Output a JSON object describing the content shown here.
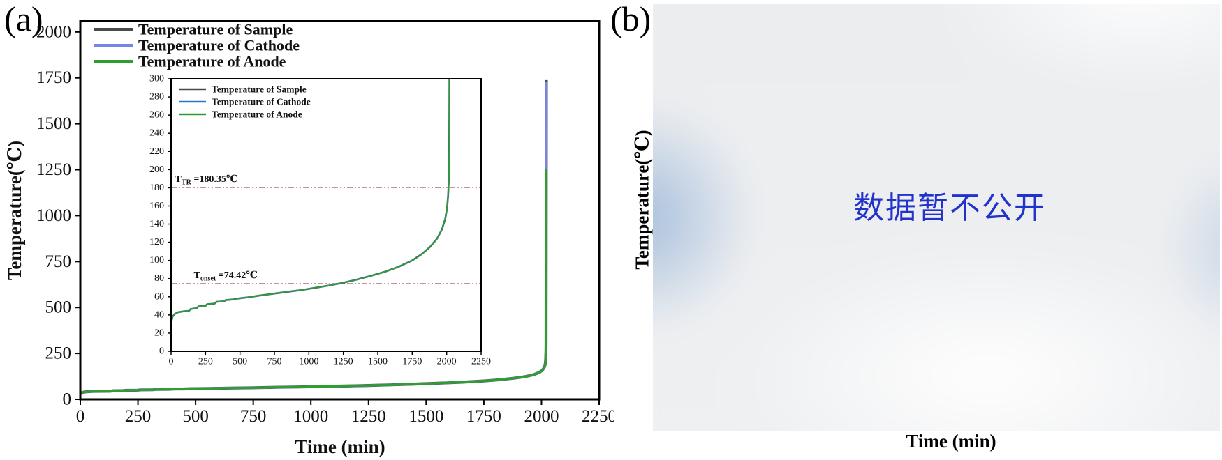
{
  "panels": {
    "a": {
      "label": "(a)"
    },
    "b": {
      "label": "(b)",
      "ylabel": "Temperature(℃)",
      "xlabel": "Time (min)",
      "watermark": "数据暂不公开",
      "watermark_color": "#2233cc"
    }
  },
  "chart_data": [
    {
      "id": "main-plot",
      "type": "line",
      "title": "",
      "xlabel": "Time (min)",
      "ylabel": "Temperature(℃)",
      "xlim": [
        0,
        2250
      ],
      "ylim": [
        0,
        2060
      ],
      "xticks": [
        0,
        250,
        500,
        750,
        1000,
        1250,
        1500,
        1750,
        2000,
        2250
      ],
      "yticks": [
        0,
        250,
        500,
        750,
        1000,
        1250,
        1500,
        1750,
        2000
      ],
      "grid": false,
      "legend_position": "top-left",
      "thermal_runaway_time_min": 2020,
      "base_points": [
        [
          0,
          30
        ],
        [
          4,
          34
        ],
        [
          10,
          38
        ],
        [
          25,
          41
        ],
        [
          50,
          43
        ],
        [
          90,
          44
        ],
        [
          130,
          44.5
        ],
        [
          142,
          46.5
        ],
        [
          185,
          47.5
        ],
        [
          200,
          49.5
        ],
        [
          250,
          50
        ],
        [
          262,
          51.8
        ],
        [
          315,
          52.5
        ],
        [
          330,
          54.5
        ],
        [
          385,
          55
        ],
        [
          398,
          56.5
        ],
        [
          450,
          57
        ],
        [
          480,
          58
        ],
        [
          560,
          59.5
        ],
        [
          650,
          61.5
        ],
        [
          750,
          63.5
        ],
        [
          850,
          65.5
        ],
        [
          950,
          67.5
        ],
        [
          1050,
          70
        ],
        [
          1150,
          72.5
        ],
        [
          1250,
          75.5
        ],
        [
          1350,
          79
        ],
        [
          1450,
          83
        ],
        [
          1550,
          87.5
        ],
        [
          1650,
          93
        ],
        [
          1750,
          100
        ],
        [
          1820,
          107
        ],
        [
          1880,
          115
        ],
        [
          1930,
          124
        ],
        [
          1965,
          134
        ],
        [
          1990,
          146
        ],
        [
          2003,
          158
        ],
        [
          2011,
          172
        ],
        [
          2015,
          186
        ],
        [
          2017,
          200
        ],
        [
          2018.5,
          225
        ],
        [
          2019.5,
          262
        ],
        [
          2020,
          300
        ]
      ],
      "series": [
        {
          "name": "Temperature of Sample",
          "color": "#4a4a4a",
          "peak_points": [
            [
              2020.6,
              1000
            ],
            [
              2021.2,
              1738
            ]
          ]
        },
        {
          "name": "Temperature of Cathode",
          "color": "#7484e8",
          "peak_points": [
            [
              2020.6,
              1000
            ],
            [
              2021.2,
              1728
            ]
          ]
        },
        {
          "name": "Temperature of Anode",
          "color": "#2e9e2e",
          "peak_points": [
            [
              2020.4,
              800
            ],
            [
              2020.9,
              1252
            ]
          ]
        }
      ]
    },
    {
      "id": "inset-plot",
      "type": "line",
      "title": "",
      "xlabel": "",
      "ylabel": "",
      "xlim": [
        0,
        2250
      ],
      "ylim": [
        0,
        300
      ],
      "xticks": [
        0,
        250,
        500,
        750,
        1000,
        1250,
        1500,
        1750,
        2000,
        2250
      ],
      "yticks": [
        0,
        20,
        40,
        60,
        80,
        100,
        120,
        140,
        160,
        180,
        200,
        220,
        240,
        260,
        280,
        300
      ],
      "grid": false,
      "legend_position": "top-left",
      "annotation_color": "#a84f6e",
      "annotations": [
        {
          "t": "T",
          "sub": "TR",
          "rest": " =180.35℃",
          "value_c": 180.35,
          "line_y": 180.35,
          "text_x": 28
        },
        {
          "t": "T",
          "sub": "onset",
          "rest": " =74.42℃",
          "value_c": 74.42,
          "line_y": 74.42,
          "text_x": 165
        }
      ],
      "base_points": [
        [
          0,
          30
        ],
        [
          4,
          34
        ],
        [
          10,
          38
        ],
        [
          25,
          41
        ],
        [
          50,
          43
        ],
        [
          90,
          44
        ],
        [
          130,
          44.5
        ],
        [
          142,
          46.5
        ],
        [
          185,
          47.5
        ],
        [
          200,
          49.5
        ],
        [
          250,
          50
        ],
        [
          262,
          51.8
        ],
        [
          315,
          52.5
        ],
        [
          330,
          54.5
        ],
        [
          385,
          55
        ],
        [
          398,
          56.5
        ],
        [
          450,
          57
        ],
        [
          480,
          58
        ],
        [
          560,
          59.5
        ],
        [
          650,
          61.5
        ],
        [
          750,
          63.5
        ],
        [
          850,
          65.5
        ],
        [
          950,
          67.5
        ],
        [
          1050,
          70
        ],
        [
          1150,
          72.5
        ],
        [
          1250,
          75.5
        ],
        [
          1350,
          79
        ],
        [
          1450,
          83
        ],
        [
          1550,
          87.5
        ],
        [
          1650,
          93
        ],
        [
          1750,
          100
        ],
        [
          1820,
          107
        ],
        [
          1880,
          115
        ],
        [
          1930,
          124
        ],
        [
          1965,
          134
        ],
        [
          1990,
          146
        ],
        [
          2003,
          158
        ],
        [
          2011,
          172
        ],
        [
          2015,
          186
        ],
        [
          2017,
          200
        ],
        [
          2018.5,
          225
        ],
        [
          2019.5,
          262
        ],
        [
          2020,
          300
        ]
      ],
      "series": [
        {
          "name": "Temperature of Sample",
          "color": "#4a4a4a",
          "peak_points": [
            [
              2020.5,
              320
            ]
          ]
        },
        {
          "name": "Temperature of Cathode",
          "color": "#2878cc",
          "peak_points": [
            [
              2020.5,
              320
            ]
          ]
        },
        {
          "name": "Temperature of Anode",
          "color": "#339933",
          "peak_points": [
            [
              2020.5,
              320
            ]
          ]
        }
      ]
    }
  ]
}
